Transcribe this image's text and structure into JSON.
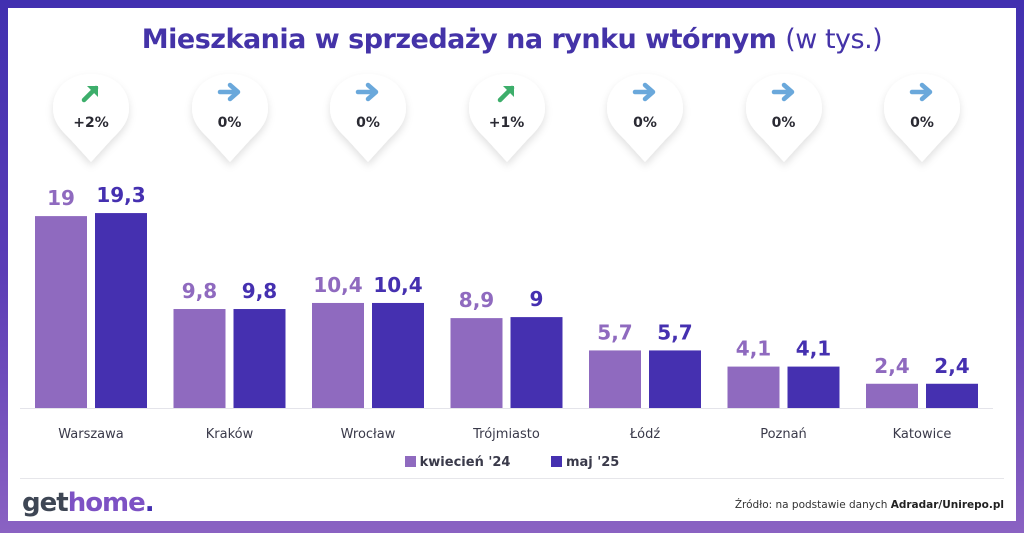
{
  "title": {
    "bold": "Mieszkania w sprzedaży na rynku wtórnym",
    "light": "(w tys.)"
  },
  "changes": [
    {
      "city": "Warszawa",
      "label": "+2%",
      "icon": "arrow-up-right-icon",
      "color": "#3dae6b"
    },
    {
      "city": "Kraków",
      "label": "0%",
      "icon": "arrow-right-icon",
      "color": "#6aa8db"
    },
    {
      "city": "Wrocław",
      "label": "0%",
      "icon": "arrow-right-icon",
      "color": "#6aa8db"
    },
    {
      "city": "Trójmiasto",
      "label": "+1%",
      "icon": "arrow-up-right-icon",
      "color": "#3dae6b"
    },
    {
      "city": "Łódź",
      "label": "0%",
      "icon": "arrow-right-icon",
      "color": "#6aa8db"
    },
    {
      "city": "Poznań",
      "label": "0%",
      "icon": "arrow-right-icon",
      "color": "#6aa8db"
    },
    {
      "city": "Katowice",
      "label": "0%",
      "icon": "arrow-right-icon",
      "color": "#6aa8db"
    }
  ],
  "chart_data": {
    "type": "bar",
    "title": "Mieszkania w sprzedaży na rynku wtórnym (w tys.)",
    "xlabel": "",
    "ylabel": "",
    "categories": [
      "Warszawa",
      "Kraków",
      "Wrocław",
      "Trójmiasto",
      "Łódź",
      "Poznań",
      "Katowice"
    ],
    "series": [
      {
        "name": "kwiecień '24",
        "color": "#8f6abf",
        "values": [
          19,
          9.8,
          10.4,
          8.9,
          5.7,
          4.1,
          2.4
        ],
        "labels": [
          "19",
          "9,8",
          "10,4",
          "8,9",
          "5,7",
          "4,1",
          "2,4"
        ]
      },
      {
        "name": "maj '25",
        "color": "#4530b0",
        "values": [
          19.3,
          9.8,
          10.4,
          9,
          5.7,
          4.1,
          2.4
        ],
        "labels": [
          "19,3",
          "9,8",
          "10,4",
          "9",
          "5,7",
          "4,1",
          "2,4"
        ]
      }
    ],
    "ylim": [
      0,
      20
    ],
    "grid": false,
    "legend": "bottom-center"
  },
  "legend": {
    "items": [
      {
        "label": "kwiecień '24",
        "color": "#8f6abf"
      },
      {
        "label": "maj '25",
        "color": "#4530b0"
      }
    ]
  },
  "footer": {
    "logo": {
      "part1": "get",
      "part2": "home",
      "part3": "."
    },
    "source_prefix": "Źródło: na podstawie danych ",
    "source_bold": "Adradar/Unirepo.pl"
  }
}
